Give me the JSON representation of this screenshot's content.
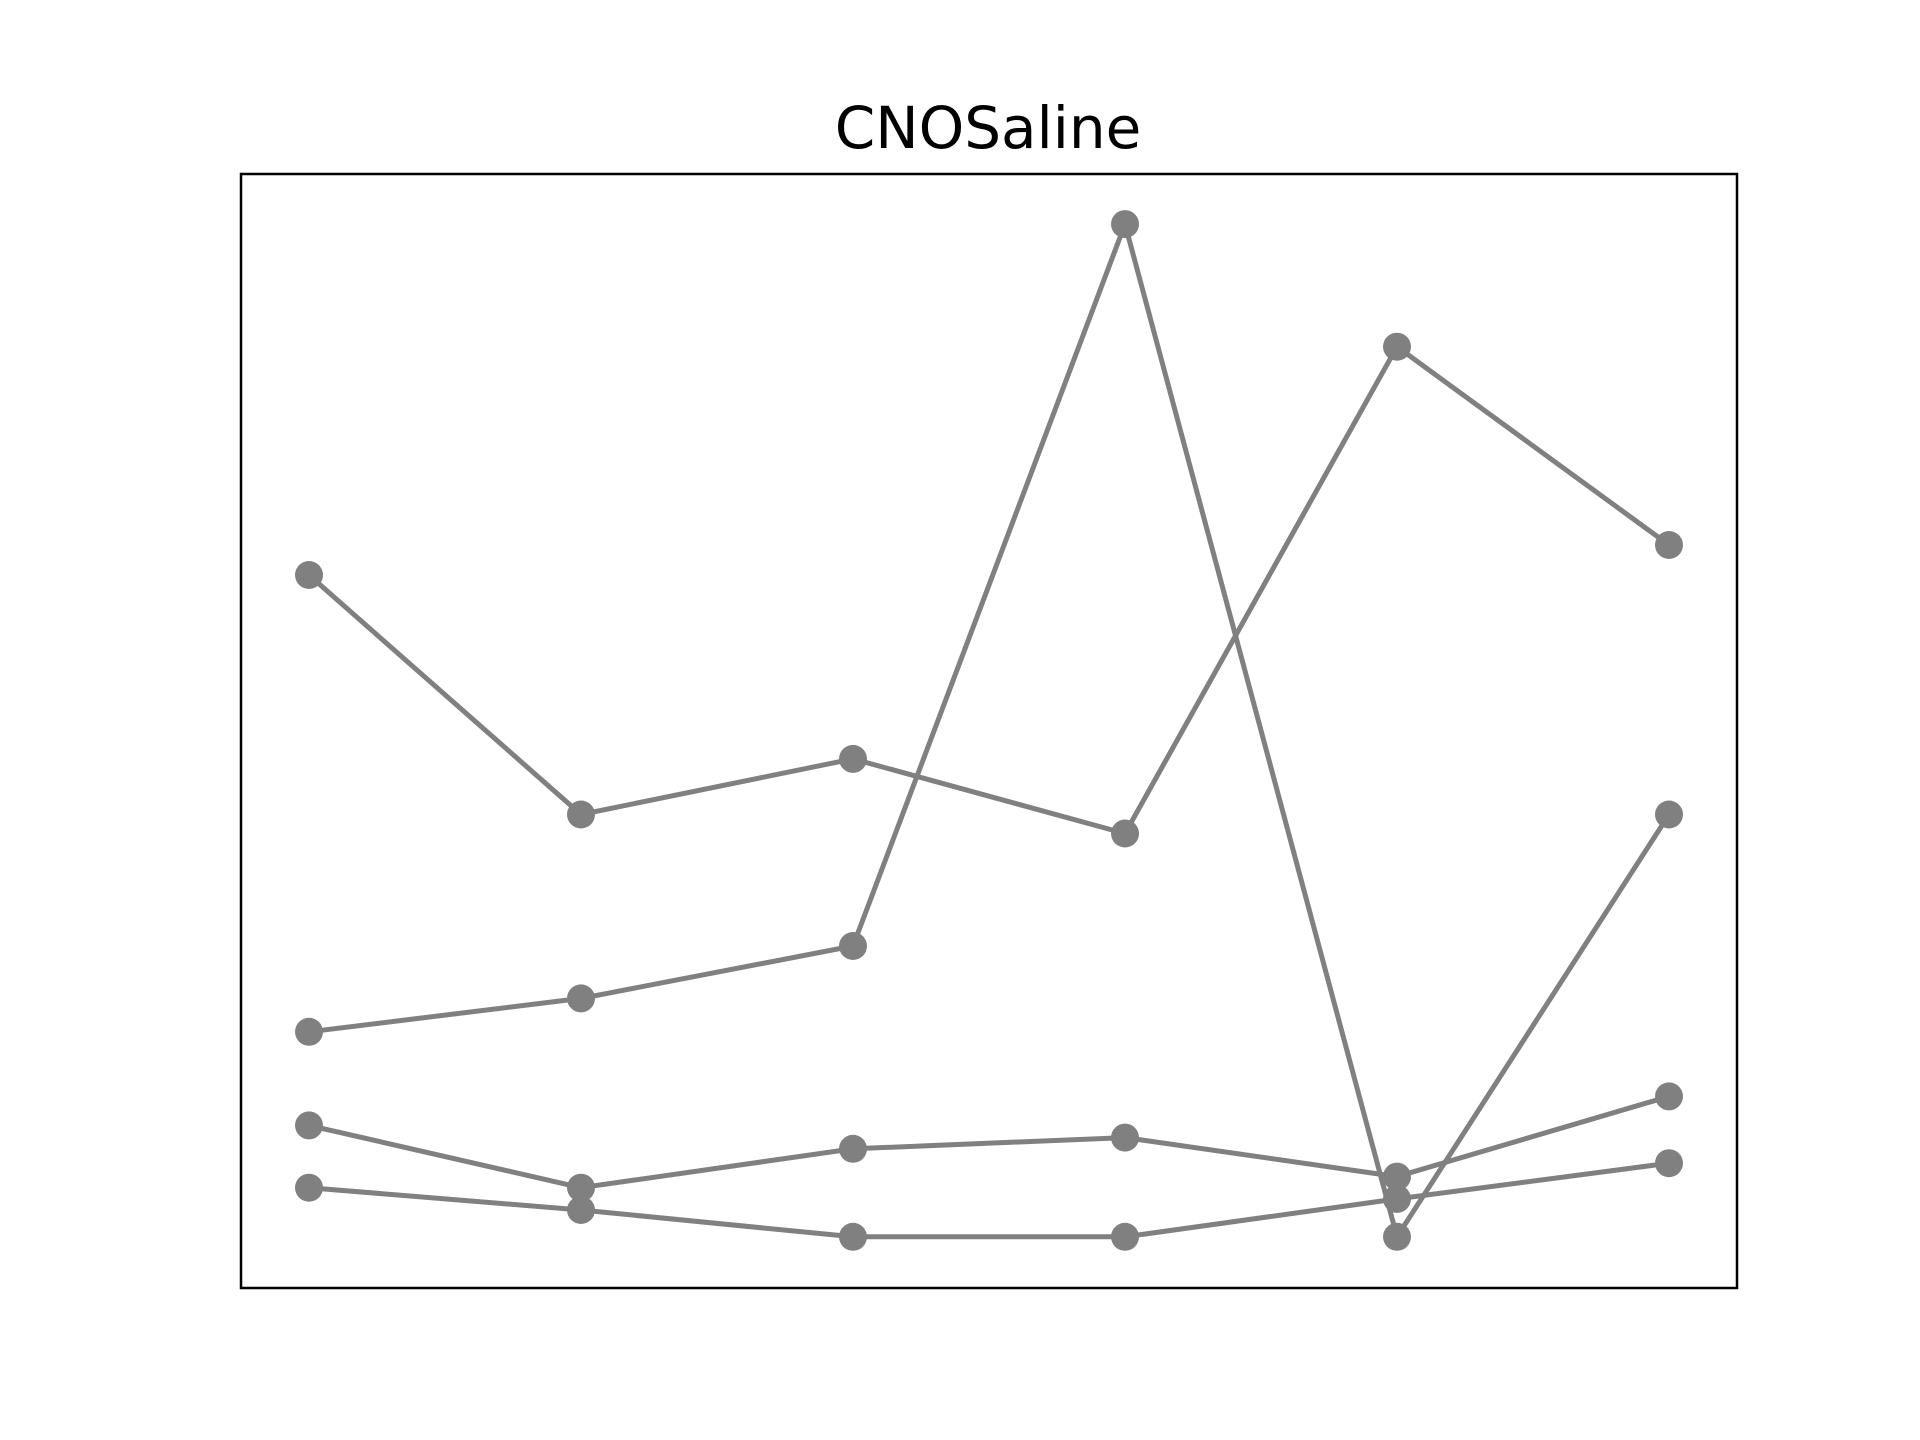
{
  "chart_data": {
    "type": "line",
    "title": "CNOSaline",
    "xlabel": "",
    "ylabel": "",
    "x": [
      0,
      1,
      2,
      3,
      4,
      5
    ],
    "xlim": [
      -0.25,
      5.25
    ],
    "ylim": [
      0,
      1
    ],
    "grid": false,
    "axes_ticks_visible": false,
    "legend": "none",
    "series": [
      {
        "values": [
          0.64,
          0.425,
          0.475,
          0.408,
          0.845,
          0.667
        ]
      },
      {
        "values": [
          0.23,
          0.26,
          0.307,
          0.955,
          0.046,
          0.425
        ]
      },
      {
        "values": [
          0.146,
          0.09,
          0.125,
          0.135,
          0.1,
          0.172
        ]
      },
      {
        "values": [
          0.09,
          0.07,
          0.046,
          0.046,
          0.08,
          0.112
        ]
      }
    ]
  },
  "colors": {
    "series": "#808080",
    "axes": "#000000",
    "background": "#ffffff"
  }
}
